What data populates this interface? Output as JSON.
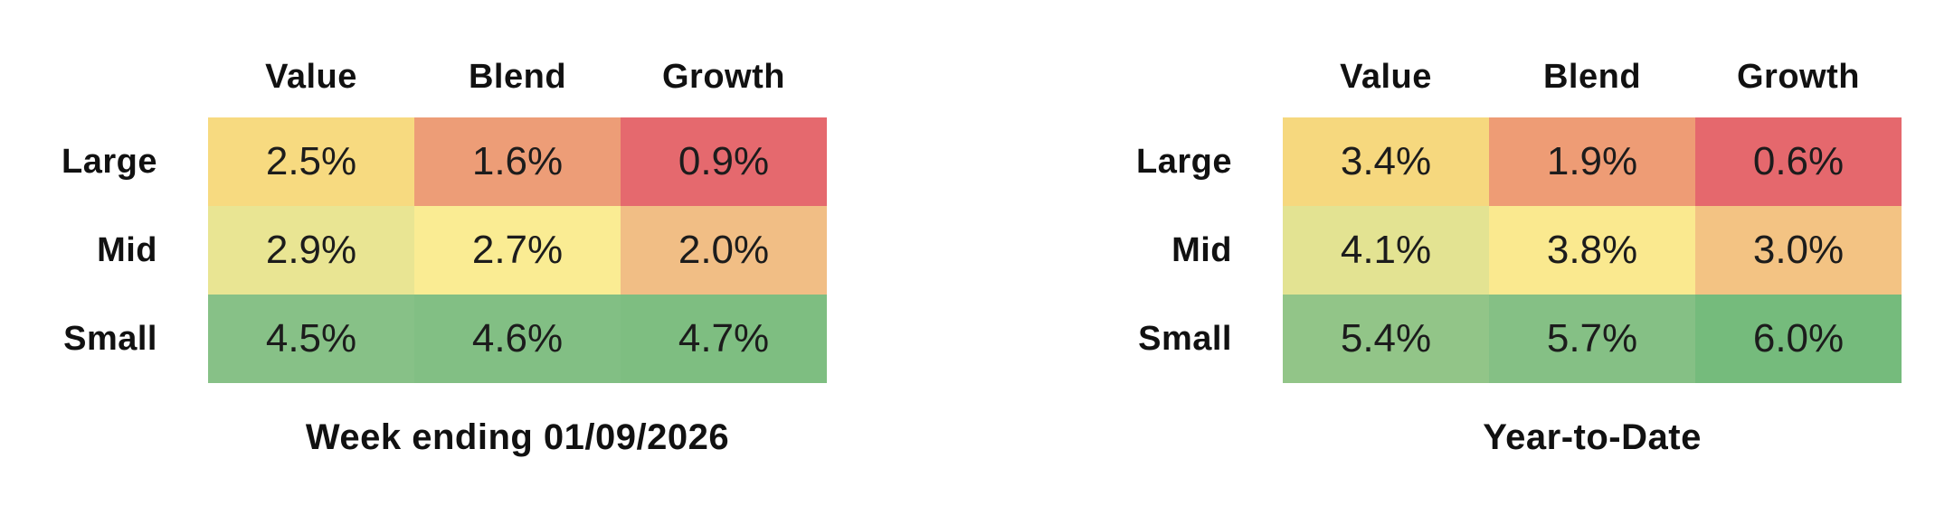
{
  "background": "#FFFFFF",
  "text_color": "#111111",
  "chart_data": [
    {
      "type": "heatmap",
      "title": "Week ending 01/09/2026",
      "columns": [
        "Value",
        "Blend",
        "Growth"
      ],
      "rows": [
        "Large",
        "Mid",
        "Small"
      ],
      "values": [
        [
          2.5,
          1.6,
          0.9
        ],
        [
          2.9,
          2.7,
          2.0
        ],
        [
          4.5,
          4.6,
          4.7
        ]
      ],
      "labels": [
        [
          "2.5%",
          "1.6%",
          "0.9%"
        ],
        [
          "2.9%",
          "2.7%",
          "2.0%"
        ],
        [
          "4.5%",
          "4.6%",
          "4.7%"
        ]
      ],
      "cell_colors": [
        [
          "#F7DA80",
          "#ED9D77",
          "#E5696E"
        ],
        [
          "#E9E593",
          "#FAEC93",
          "#F1BE85"
        ],
        [
          "#87C187",
          "#82BF84",
          "#7EBE81"
        ]
      ],
      "colormap": "red-yellow-green",
      "legend": "none",
      "grid": "off"
    },
    {
      "type": "heatmap",
      "title": "Year-to-Date",
      "columns": [
        "Value",
        "Blend",
        "Growth"
      ],
      "rows": [
        "Large",
        "Mid",
        "Small"
      ],
      "values": [
        [
          3.4,
          1.9,
          0.6
        ],
        [
          4.1,
          3.8,
          3.0
        ],
        [
          5.4,
          5.7,
          6.0
        ]
      ],
      "labels": [
        [
          "3.4%",
          "1.9%",
          "0.6%"
        ],
        [
          "4.1%",
          "3.8%",
          "3.0%"
        ],
        [
          "5.4%",
          "5.7%",
          "6.0%"
        ]
      ],
      "cell_colors": [
        [
          "#F6D87E",
          "#EE9C75",
          "#E5686D"
        ],
        [
          "#E3E392",
          "#FAE98F",
          "#F3C383"
        ],
        [
          "#92C588",
          "#85C085",
          "#75BB7C"
        ]
      ],
      "colormap": "red-yellow-green",
      "legend": "none",
      "grid": "off"
    }
  ]
}
